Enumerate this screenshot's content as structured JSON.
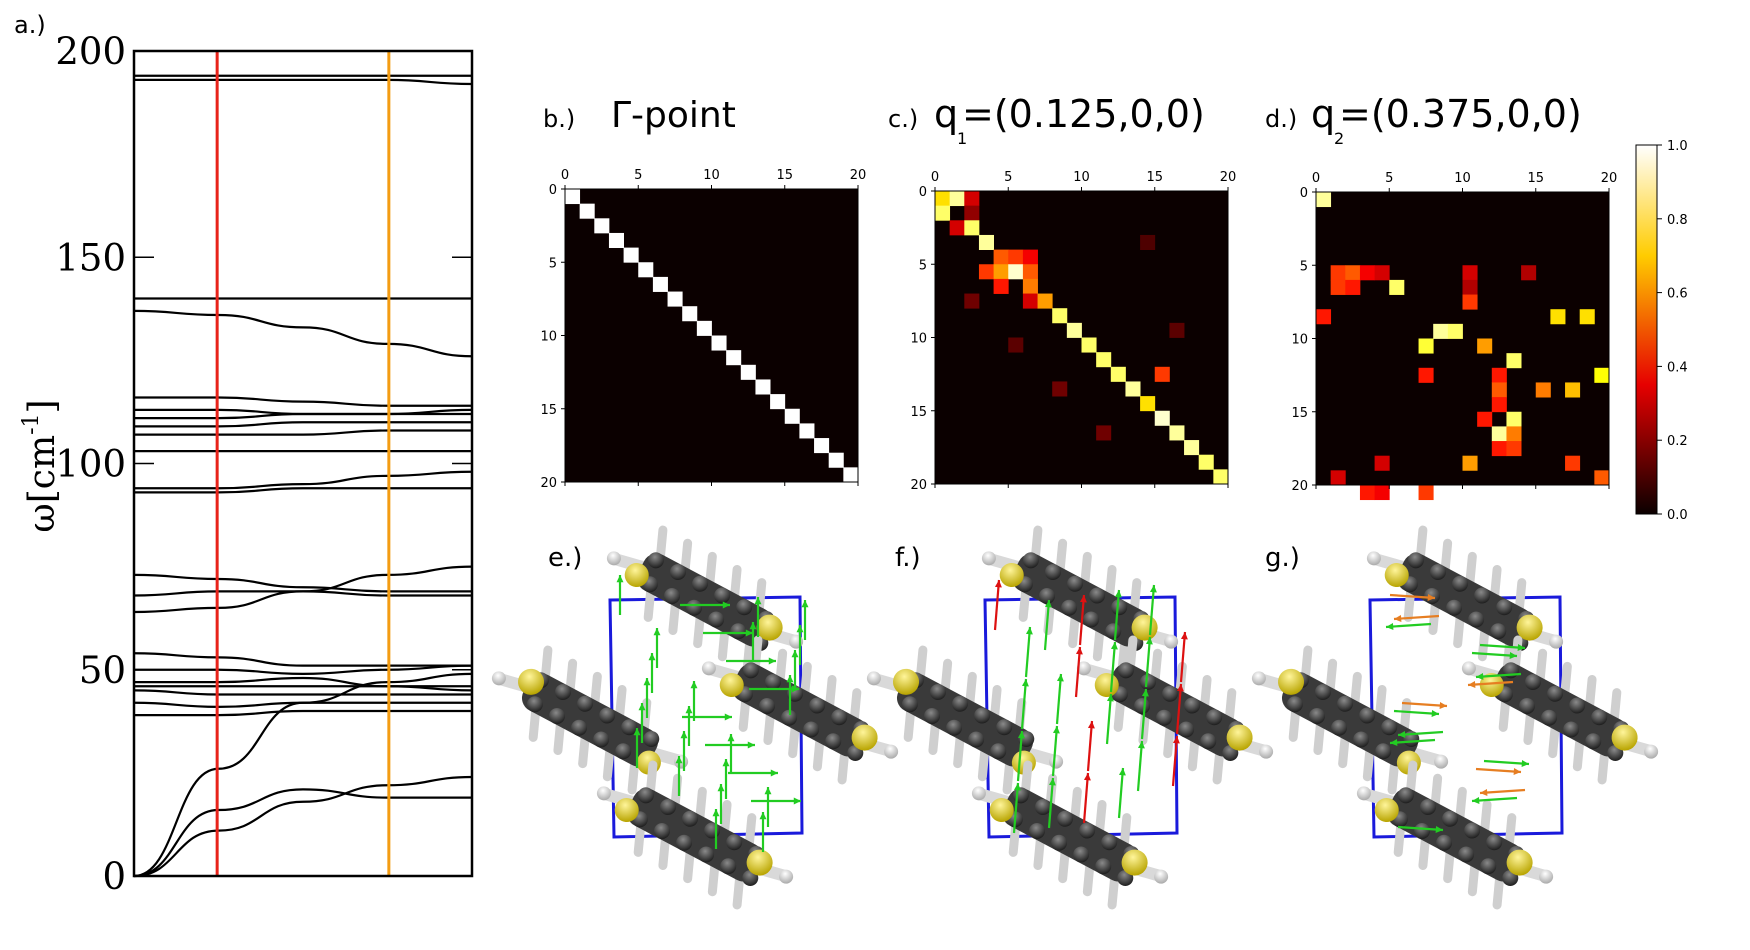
{
  "panel_labels": {
    "a": "a.)",
    "b": "b.)",
    "c": "c.)",
    "d": "d.)",
    "e": "e.)",
    "f": "f.)",
    "g": "g.)"
  },
  "colorbar": {
    "ticks": [
      "0.0",
      "0.2",
      "0.4",
      "0.6",
      "0.8",
      "1.0"
    ],
    "colormap": "hot"
  },
  "colors": {
    "red_line": "#e8231a",
    "orange_line": "#f39c12",
    "cell_box": "#1a1adb",
    "arrow_green": "#22cc22",
    "arrow_red": "#dd1111",
    "arrow_orange": "#e67e22",
    "sulfur": "#e8d81a"
  },
  "chart_data": [
    {
      "id": "a",
      "type": "line",
      "title": "",
      "xlabel": "",
      "ylabel_parts": {
        "base": "ω[cm",
        "sup": "-1",
        "close": "]"
      },
      "ylim": [
        0,
        200
      ],
      "yticks": [
        "0",
        "50",
        "100",
        "150",
        "200"
      ],
      "xlim": [
        0,
        1
      ],
      "vertical_markers": [
        {
          "x": 0.246,
          "color": "#e8231a"
        },
        {
          "x": 0.754,
          "color": "#f39c12"
        }
      ],
      "x": [
        0,
        0.25,
        0.5,
        0.75,
        1.0
      ],
      "series": [
        {
          "values": [
            0,
            11,
            18,
            22,
            24
          ]
        },
        {
          "values": [
            0,
            16,
            21,
            19,
            19
          ]
        },
        {
          "values": [
            0,
            26,
            42,
            47,
            49
          ]
        },
        {
          "values": [
            39,
            39,
            40,
            40,
            40
          ]
        },
        {
          "values": [
            42,
            41,
            42,
            42,
            42
          ]
        },
        {
          "values": [
            45,
            44,
            44,
            44,
            44
          ]
        },
        {
          "values": [
            46,
            46,
            46,
            46,
            46
          ]
        },
        {
          "values": [
            47,
            47,
            48,
            46,
            45
          ]
        },
        {
          "values": [
            50,
            50,
            49,
            50,
            51
          ]
        },
        {
          "values": [
            54,
            53,
            51,
            51,
            51
          ]
        },
        {
          "values": [
            64,
            65,
            69,
            73,
            75
          ]
        },
        {
          "values": [
            68,
            69,
            69,
            68,
            68
          ]
        },
        {
          "values": [
            73,
            72,
            70,
            69,
            69
          ]
        },
        {
          "values": [
            93,
            93,
            94,
            94,
            94
          ]
        },
        {
          "values": [
            94,
            94,
            95,
            97,
            98
          ]
        },
        {
          "values": [
            103,
            103,
            103,
            103,
            103
          ]
        },
        {
          "values": [
            107,
            107,
            107,
            108,
            108
          ]
        },
        {
          "values": [
            109,
            109,
            110,
            110,
            110
          ]
        },
        {
          "values": [
            111,
            111,
            112,
            112,
            112
          ]
        },
        {
          "values": [
            113,
            113,
            112,
            112,
            113
          ]
        },
        {
          "values": [
            116,
            116,
            115,
            114,
            114
          ]
        },
        {
          "values": [
            137,
            136,
            133,
            129,
            126
          ]
        },
        {
          "values": [
            140,
            140,
            140,
            140,
            140
          ]
        },
        {
          "values": [
            193,
            193,
            193,
            193,
            192
          ]
        },
        {
          "values": [
            194,
            194,
            194,
            194,
            194
          ]
        }
      ]
    },
    {
      "id": "b",
      "type": "heatmap",
      "title": "Γ-point",
      "xticks": [
        "0",
        "5",
        "10",
        "15",
        "20"
      ],
      "yticks": [
        "0",
        "5",
        "10",
        "15",
        "20"
      ],
      "size": 20,
      "vmin": 0,
      "vmax": 1,
      "entries": [
        [
          0,
          0,
          1
        ],
        [
          1,
          1,
          1
        ],
        [
          2,
          2,
          1
        ],
        [
          3,
          3,
          1
        ],
        [
          4,
          4,
          1
        ],
        [
          5,
          5,
          1
        ],
        [
          6,
          6,
          1
        ],
        [
          7,
          7,
          1
        ],
        [
          8,
          8,
          1
        ],
        [
          9,
          9,
          1
        ],
        [
          10,
          10,
          1
        ],
        [
          11,
          11,
          1
        ],
        [
          12,
          12,
          1
        ],
        [
          13,
          13,
          1
        ],
        [
          14,
          14,
          1
        ],
        [
          15,
          15,
          1
        ],
        [
          16,
          16,
          1
        ],
        [
          17,
          17,
          1
        ],
        [
          18,
          18,
          1
        ],
        [
          19,
          19,
          1
        ]
      ]
    },
    {
      "id": "c",
      "type": "heatmap",
      "title_parts": {
        "q": "q",
        "sub": "1",
        "rest": "=(0.125,0,0)"
      },
      "xticks": [
        "0",
        "5",
        "10",
        "15",
        "20"
      ],
      "yticks": [
        "0",
        "5",
        "10",
        "15",
        "20"
      ],
      "size": 20,
      "vmin": 0,
      "vmax": 1,
      "entries": [
        [
          0,
          0,
          0.7
        ],
        [
          0,
          1,
          0.9
        ],
        [
          0,
          2,
          0.3
        ],
        [
          1,
          0,
          0.85
        ],
        [
          1,
          2,
          0.2
        ],
        [
          2,
          1,
          0.3
        ],
        [
          2,
          2,
          0.85
        ],
        [
          3,
          3,
          0.9
        ],
        [
          4,
          4,
          0.5
        ],
        [
          4,
          5,
          0.45
        ],
        [
          4,
          6,
          0.35
        ],
        [
          5,
          3,
          0.45
        ],
        [
          5,
          4,
          0.6
        ],
        [
          5,
          5,
          0.95
        ],
        [
          5,
          6,
          0.5
        ],
        [
          6,
          4,
          0.4
        ],
        [
          6,
          6,
          0.55
        ],
        [
          7,
          6,
          0.3
        ],
        [
          7,
          7,
          0.6
        ],
        [
          8,
          8,
          0.85
        ],
        [
          9,
          9,
          0.9
        ],
        [
          10,
          10,
          0.85
        ],
        [
          11,
          11,
          0.85
        ],
        [
          12,
          12,
          0.85
        ],
        [
          12,
          15,
          0.45
        ],
        [
          13,
          13,
          0.9
        ],
        [
          14,
          14,
          0.7
        ],
        [
          15,
          15,
          0.95
        ],
        [
          16,
          16,
          0.9
        ],
        [
          17,
          17,
          0.9
        ],
        [
          18,
          18,
          0.85
        ],
        [
          19,
          19,
          0.85
        ],
        [
          7,
          2,
          0.15
        ],
        [
          10,
          5,
          0.12
        ],
        [
          13,
          8,
          0.15
        ],
        [
          3,
          14,
          0.1
        ],
        [
          9,
          16,
          0.12
        ],
        [
          16,
          11,
          0.15
        ]
      ]
    },
    {
      "id": "d",
      "type": "heatmap",
      "title_parts": {
        "q": "q",
        "sub": "2",
        "rest": "=(0.375,0,0)"
      },
      "xticks": [
        "0",
        "5",
        "10",
        "15",
        "20"
      ],
      "yticks": [
        "0",
        "5",
        "10",
        "15",
        "20"
      ],
      "size": 20,
      "vmin": 0,
      "vmax": 1,
      "entries": [
        [
          0,
          0,
          0.9
        ],
        [
          5,
          1,
          0.45
        ],
        [
          5,
          2,
          0.5
        ],
        [
          5,
          3,
          0.35
        ],
        [
          5,
          4,
          0.3
        ],
        [
          6,
          1,
          0.45
        ],
        [
          6,
          2,
          0.4
        ],
        [
          5,
          10,
          0.3
        ],
        [
          6,
          10,
          0.25
        ],
        [
          5,
          14,
          0.25
        ],
        [
          6,
          5,
          0.85
        ],
        [
          7,
          10,
          0.45
        ],
        [
          8,
          0,
          0.4
        ],
        [
          8,
          16,
          0.7
        ],
        [
          8,
          18,
          0.7
        ],
        [
          9,
          8,
          0.9
        ],
        [
          9,
          9,
          0.85
        ],
        [
          10,
          7,
          0.8
        ],
        [
          10,
          11,
          0.6
        ],
        [
          11,
          13,
          0.85
        ],
        [
          12,
          7,
          0.4
        ],
        [
          12,
          12,
          0.4
        ],
        [
          12,
          19,
          0.75
        ],
        [
          13,
          12,
          0.5
        ],
        [
          13,
          15,
          0.55
        ],
        [
          13,
          17,
          0.65
        ],
        [
          14,
          12,
          0.4
        ],
        [
          15,
          11,
          0.4
        ],
        [
          15,
          13,
          0.85
        ],
        [
          16,
          12,
          0.9
        ],
        [
          16,
          13,
          0.55
        ],
        [
          17,
          12,
          0.4
        ],
        [
          17,
          13,
          0.45
        ],
        [
          18,
          4,
          0.3
        ],
        [
          18,
          10,
          0.6
        ],
        [
          18,
          17,
          0.45
        ],
        [
          19,
          1,
          0.3
        ],
        [
          20,
          3,
          0.4
        ],
        [
          20,
          4,
          0.35
        ],
        [
          20,
          7,
          0.45
        ],
        [
          19,
          19,
          0.5
        ]
      ]
    }
  ]
}
